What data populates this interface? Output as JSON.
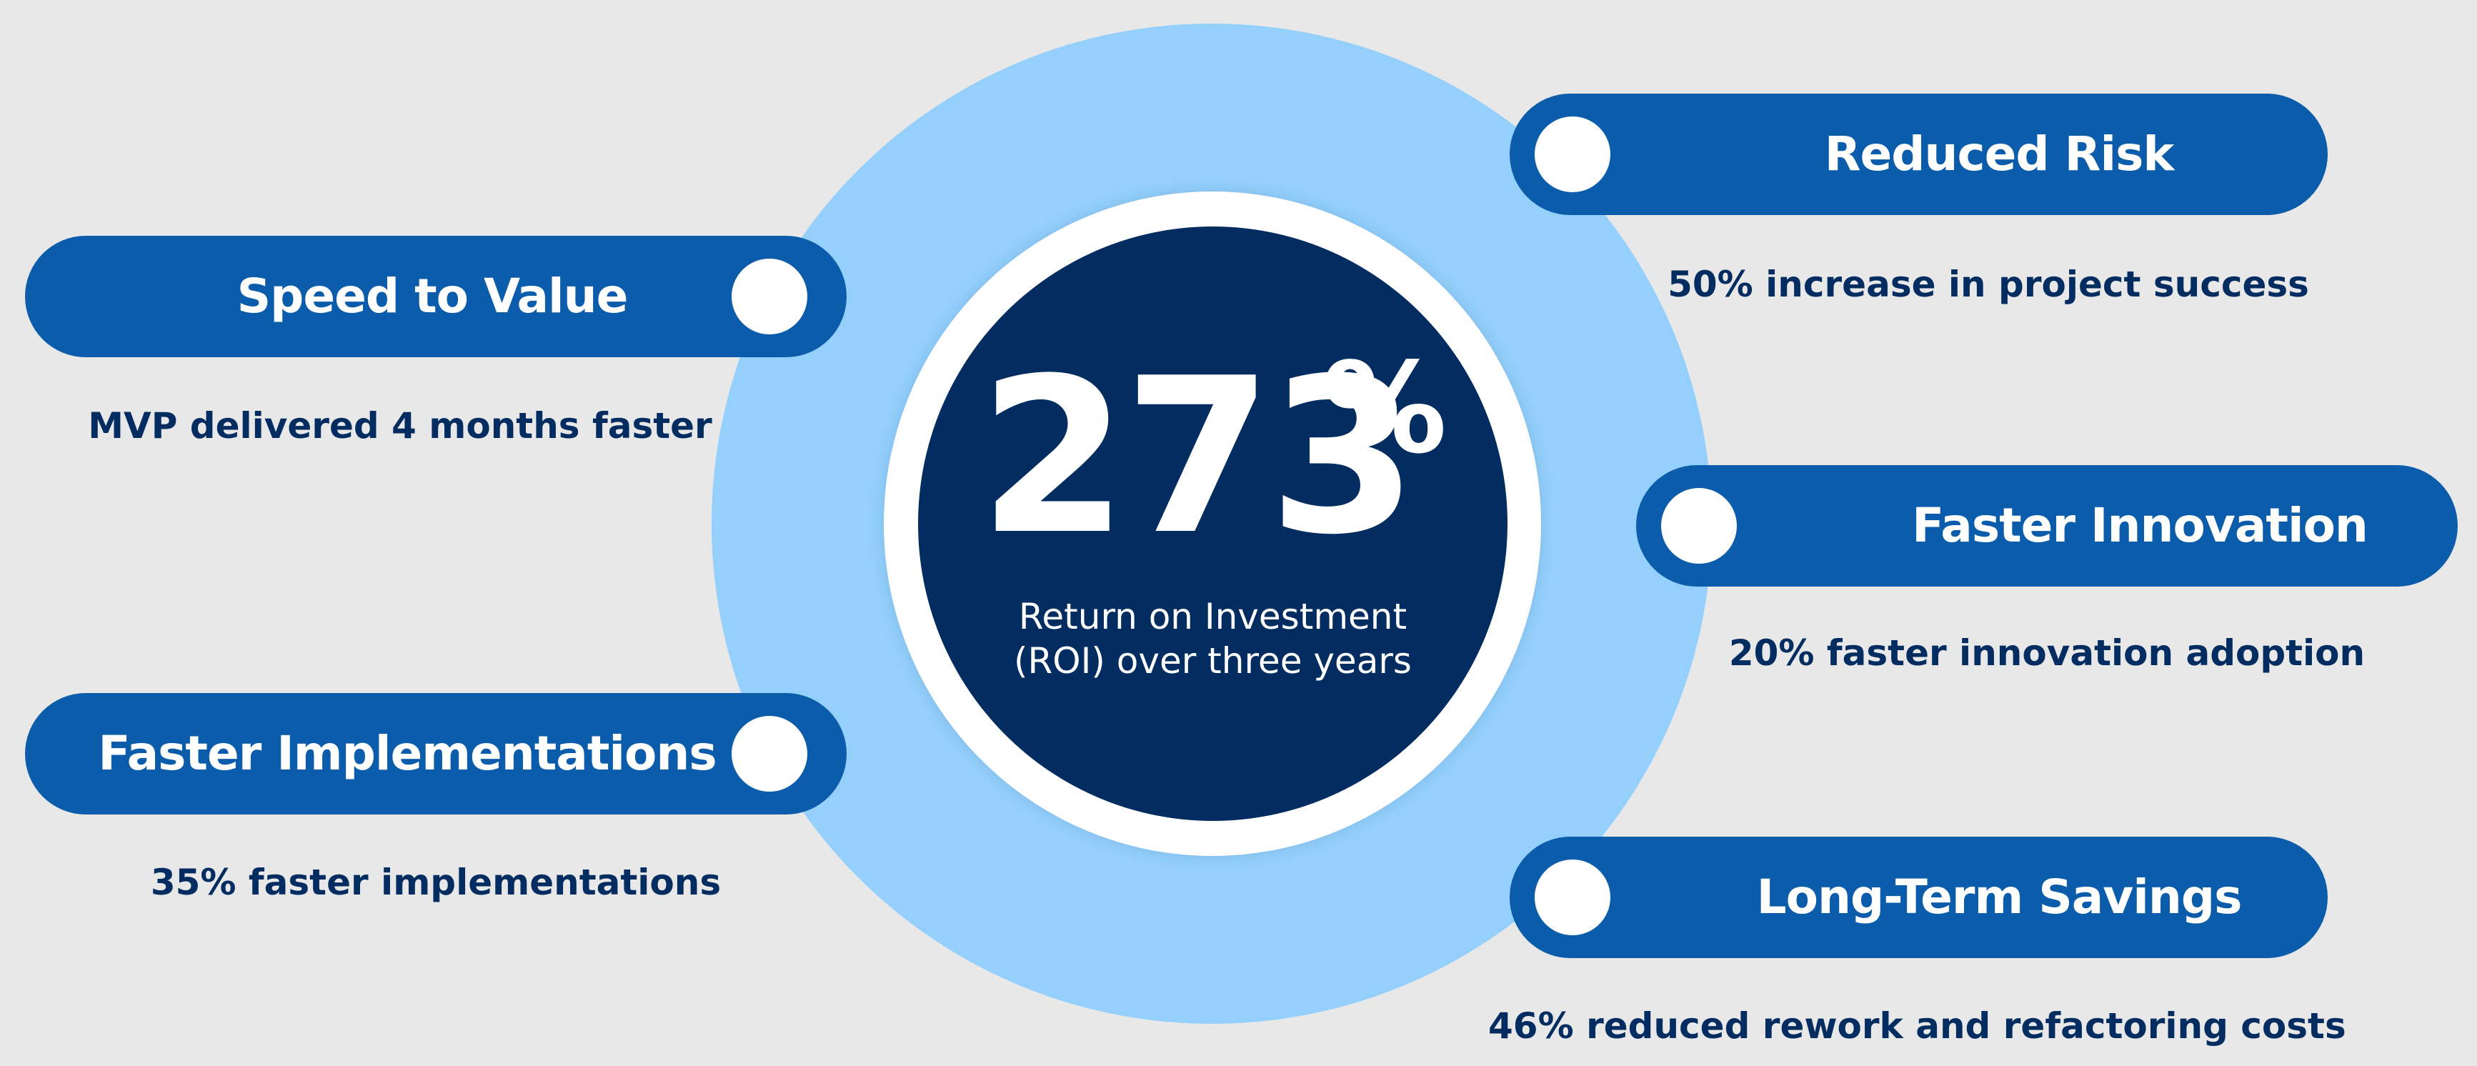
{
  "center": {
    "value": "273",
    "unit": "%",
    "caption_line1": "Return on Investment",
    "caption_line2": "(ROI) over three years"
  },
  "benefits": [
    {
      "title": "Speed to Value",
      "description": "MVP delivered 4 months faster"
    },
    {
      "title": "Faster Implementations",
      "description": "35% faster implementations"
    },
    {
      "title": "Reduced Risk",
      "description": "50% increase in project success"
    },
    {
      "title": "Faster Innovation",
      "description": "20% faster innovation adoption"
    },
    {
      "title": "Long-Term Savings",
      "description": "46% reduced rework and refactoring costs"
    }
  ],
  "colors": {
    "background": "#e8e8e9",
    "outer_ring": "#94d0fb",
    "inner_circle": "#032d60",
    "pill": "#0b5cab",
    "text_dark": "#032d60",
    "text_light": "#ffffff"
  }
}
